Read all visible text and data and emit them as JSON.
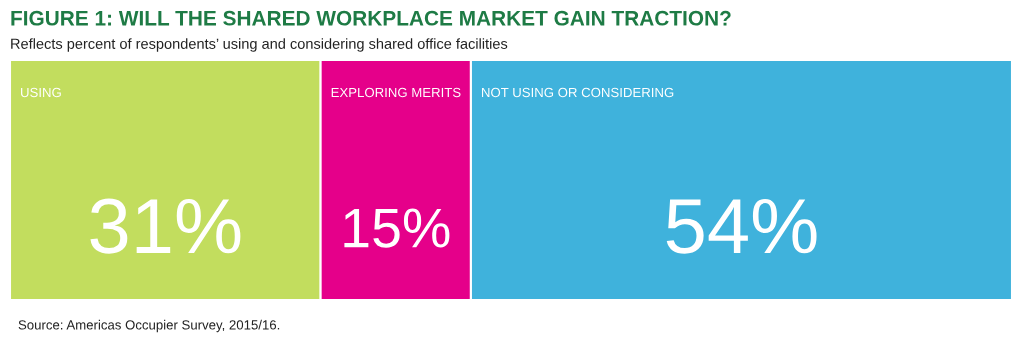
{
  "chart_data": {
    "type": "bar",
    "orientation": "horizontal",
    "stacked": true,
    "title": "FIGURE 1: WILL THE SHARED WORKPLACE MARKET GAIN TRACTION?",
    "subtitle": "Reflects percent of respondents’ using and considering shared office facilities",
    "categories": [
      null
    ],
    "series": [
      {
        "name": "USING",
        "color": "#c2dd5e",
        "values": [
          31
        ],
        "value_labels": [
          "31%"
        ]
      },
      {
        "name": "EXPLORING MERITS",
        "color": "#e5008a",
        "values": [
          15
        ],
        "value_labels": [
          "15%"
        ]
      },
      {
        "name": "NOT USING OR CONSIDERING",
        "color": "#3fb2dc",
        "values": [
          54
        ],
        "value_labels": [
          "54%"
        ]
      }
    ],
    "annotations": [
      "Source: Americas Occupier Survey, 2015/16."
    ]
  }
}
